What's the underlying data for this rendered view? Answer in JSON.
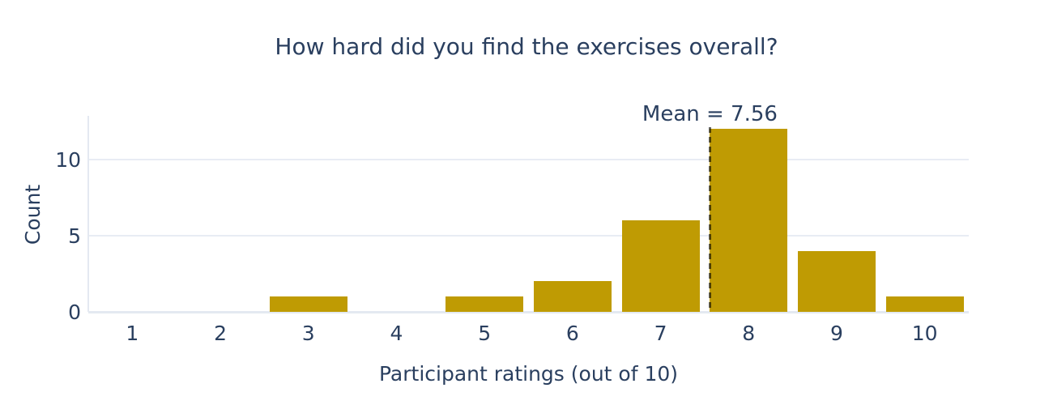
{
  "chart_data": {
    "type": "bar",
    "title": "How hard did you find the exercises overall?",
    "xlabel": "Participant ratings (out of 10)",
    "ylabel": "Count",
    "categories": [
      "1",
      "2",
      "3",
      "4",
      "5",
      "6",
      "7",
      "8",
      "9",
      "10"
    ],
    "values": [
      0,
      0,
      1,
      0,
      1,
      2,
      6,
      12,
      4,
      1
    ],
    "yticks": [
      0,
      5,
      10
    ],
    "ylim": [
      0,
      12.87
    ],
    "x_range": [
      0.5,
      10.5
    ],
    "grid": true,
    "legend": "none",
    "mean": 7.56,
    "annotation_label": "Mean = 7.56",
    "colors": {
      "bar": "#bf9b03",
      "text": "#2a3f5f",
      "gridline": "#e8ecf4",
      "zeroline": "#e4e9f1",
      "mean_line": "rgba(0,0,0,0.6)",
      "background": "#ffffff"
    }
  }
}
